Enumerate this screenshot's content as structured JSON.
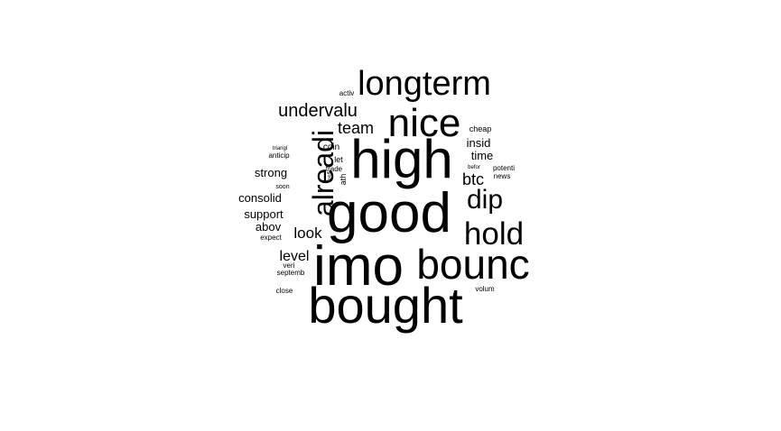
{
  "word_cloud": {
    "words": [
      "longterm",
      "nice",
      "high",
      "good",
      "imo",
      "bounc",
      "bought",
      "hold",
      "dip",
      "alreadi",
      "undervalu",
      "team",
      "btc",
      "look",
      "level",
      "strong",
      "consolid",
      "support",
      "abov",
      "insid",
      "time",
      "cheap",
      "coin",
      "let",
      "trade",
      "ath",
      "ssf",
      "activ",
      "triangl",
      "anticip",
      "soon",
      "expect",
      "veri",
      "septemb",
      "close",
      "volum",
      "befor",
      "potenti",
      "news"
    ]
  }
}
